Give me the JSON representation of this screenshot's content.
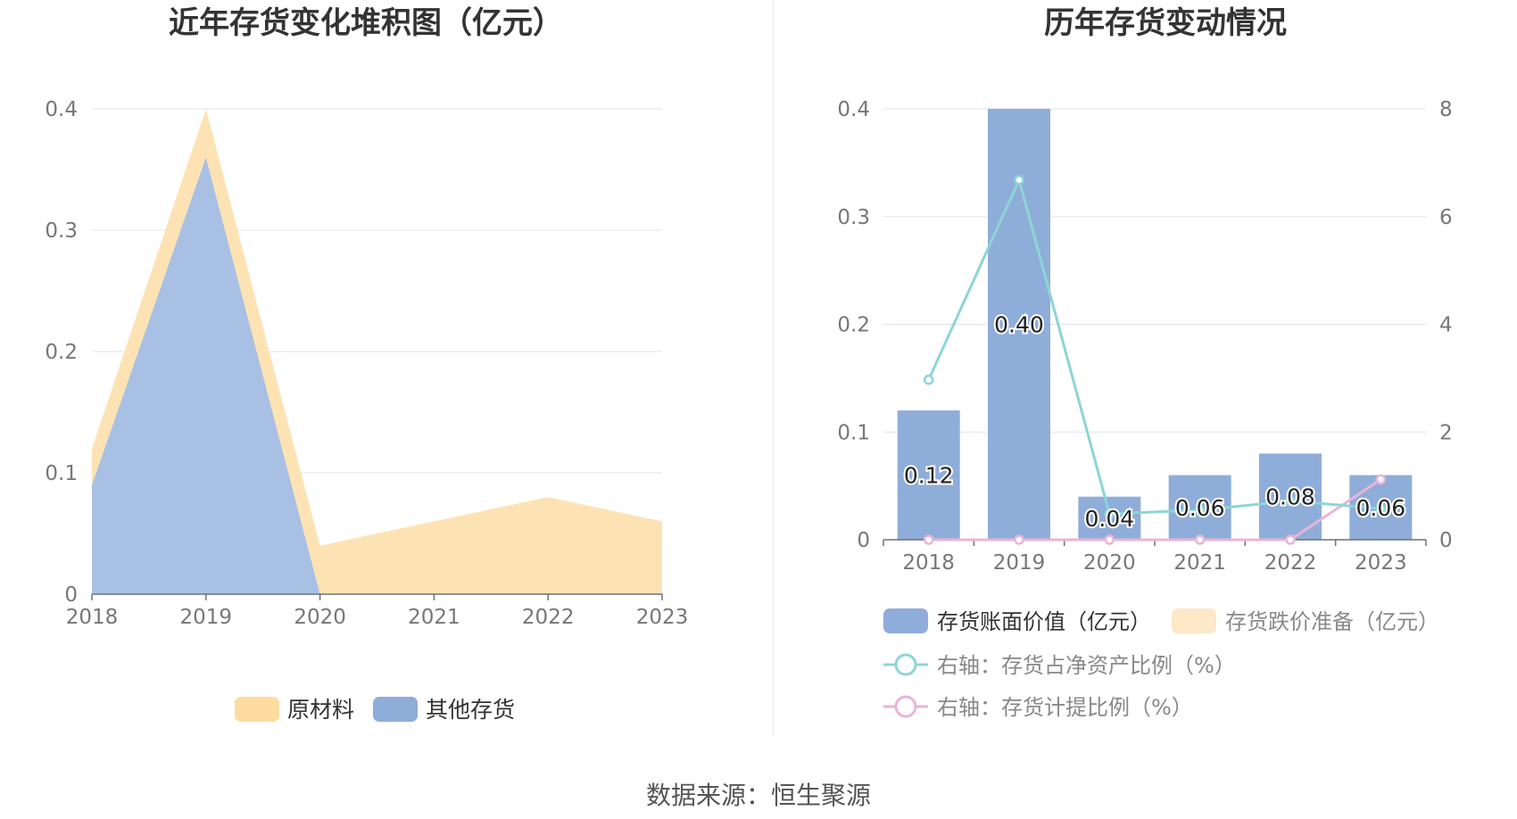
{
  "left_chart_title": "近年存货变化堆积图（亿元）",
  "right_chart_title": "历年存货变动情况",
  "source": "数据来源：恒生聚源",
  "colors": {
    "raw_material": "#fde3b4",
    "other_inventory": "#a8c0e4",
    "bar": "#8fadd9",
    "ratio_line": "#8dd5d5",
    "provision_line": "#e8b4d8",
    "legend_raw_material": "#fddba1",
    "legend_other": "#8fadd9",
    "legend_provision_bar": "#fde8c8"
  },
  "chart_data": [
    {
      "type": "area",
      "stacked": true,
      "title": "近年存货变化堆积图（亿元）",
      "categories": [
        "2018",
        "2019",
        "2020",
        "2021",
        "2022",
        "2023"
      ],
      "series": [
        {
          "name": "其他存货",
          "values": [
            0.09,
            0.36,
            0.0,
            0.0,
            0.0,
            0.0
          ]
        },
        {
          "name": "原材料",
          "values": [
            0.03,
            0.04,
            0.04,
            0.06,
            0.08,
            0.06
          ]
        }
      ],
      "ylim": [
        0,
        0.4
      ],
      "yticks": [
        "0",
        "0.1",
        "0.2",
        "0.3",
        "0.4"
      ],
      "grid": true,
      "legend": {
        "position": "bottom",
        "items": [
          "原材料",
          "其他存货"
        ]
      }
    },
    {
      "type": "bar",
      "title": "历年存货变动情况",
      "categories": [
        "2018",
        "2019",
        "2020",
        "2021",
        "2022",
        "2023"
      ],
      "series": [
        {
          "name": "存货账面价值（亿元）",
          "type": "bar",
          "axis": "left",
          "values": [
            0.12,
            0.4,
            0.04,
            0.06,
            0.08,
            0.06
          ],
          "labels": [
            "0.12",
            "0.40",
            "0.04",
            "0.06",
            "0.08",
            "0.06"
          ]
        },
        {
          "name": "存货跌价准备（亿元）",
          "type": "bar",
          "axis": "left",
          "values": [
            0,
            0,
            0,
            0,
            0,
            0
          ]
        },
        {
          "name": "右轴：存货占净资产比例（%）",
          "type": "line",
          "axis": "right",
          "values": [
            2.97,
            6.68,
            0.48,
            0.55,
            0.72,
            0.58
          ]
        },
        {
          "name": "右轴：存货计提比例（%）",
          "type": "line",
          "axis": "right",
          "values": [
            0,
            0,
            0,
            0,
            0,
            1.12
          ]
        }
      ],
      "ylim_left": [
        0,
        0.4
      ],
      "yticks_left": [
        "0",
        "0.1",
        "0.2",
        "0.3",
        "0.4"
      ],
      "ylim_right": [
        0,
        8
      ],
      "yticks_right": [
        "0",
        "2",
        "4",
        "6",
        "8"
      ],
      "grid": true,
      "legend": {
        "position": "bottom"
      }
    }
  ]
}
